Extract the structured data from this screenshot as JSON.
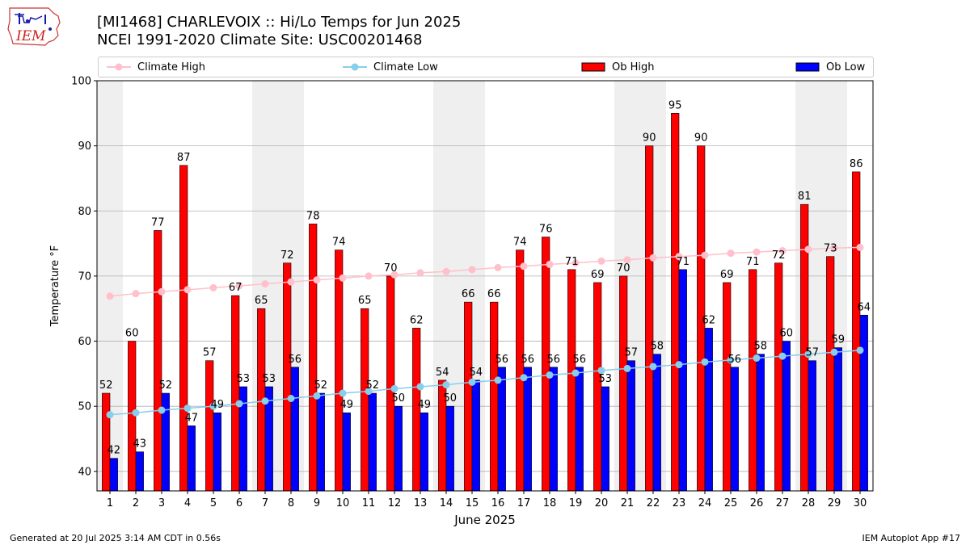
{
  "title_line1": "[MI1468] CHARLEVOIX :: Hi/Lo Temps for Jun 2025",
  "title_line2": "NCEI 1991-2020 Climate Site: USC00201468",
  "logo_text": "IEM",
  "footer_left": "Generated at 20 Jul 2025 3:14 AM CDT in 0.56s",
  "footer_right": "IEM Autoplot App #17",
  "colors": {
    "ob_high": "#ff0000",
    "ob_low": "#0000ff",
    "climate_high": "#ffc0cb",
    "climate_low": "#87ceeb",
    "weekend_shade": "#efefef",
    "grid": "#b0b0b0"
  },
  "chart_data": {
    "type": "bar",
    "xlabel": "June 2025",
    "ylabel": "Temperature °F",
    "ylim": [
      37,
      100
    ],
    "yticks": [
      40,
      50,
      60,
      70,
      80,
      90,
      100
    ],
    "grid": "horizontal",
    "legend_placement": "top",
    "shaded_days": [
      1,
      7,
      8,
      14,
      15,
      21,
      22,
      28,
      29
    ],
    "categories": [
      "1",
      "2",
      "3",
      "4",
      "5",
      "6",
      "7",
      "8",
      "9",
      "10",
      "11",
      "12",
      "13",
      "14",
      "15",
      "16",
      "17",
      "18",
      "19",
      "20",
      "21",
      "22",
      "23",
      "24",
      "25",
      "26",
      "27",
      "28",
      "29",
      "30"
    ],
    "series": [
      {
        "name": "Climate High",
        "kind": "line",
        "values": [
          66.9,
          67.3,
          67.6,
          67.9,
          68.2,
          68.5,
          68.8,
          69.1,
          69.4,
          69.7,
          70.0,
          70.2,
          70.5,
          70.7,
          71.0,
          71.3,
          71.5,
          71.8,
          72.0,
          72.3,
          72.5,
          72.8,
          73.0,
          73.2,
          73.5,
          73.7,
          73.9,
          74.1,
          74.3,
          74.4
        ]
      },
      {
        "name": "Climate Low",
        "kind": "line",
        "values": [
          48.7,
          49.0,
          49.4,
          49.7,
          50.0,
          50.4,
          50.8,
          51.2,
          51.6,
          52.0,
          52.3,
          52.7,
          53.0,
          53.3,
          53.7,
          54.0,
          54.4,
          54.8,
          55.1,
          55.5,
          55.8,
          56.1,
          56.4,
          56.8,
          57.1,
          57.4,
          57.7,
          58.0,
          58.3,
          58.6
        ]
      },
      {
        "name": "Ob High",
        "kind": "bar",
        "values": [
          52,
          60,
          77,
          87,
          57,
          67,
          65,
          72,
          78,
          74,
          65,
          70,
          62,
          54,
          66,
          66,
          74,
          76,
          71,
          69,
          70,
          90,
          95,
          90,
          69,
          71,
          72,
          81,
          73,
          86
        ]
      },
      {
        "name": "Ob Low",
        "kind": "bar",
        "values": [
          42,
          43,
          52,
          47,
          49,
          53,
          53,
          56,
          52,
          49,
          52,
          50,
          49,
          50,
          54,
          56,
          56,
          56,
          56,
          53,
          57,
          58,
          71,
          62,
          56,
          58,
          60,
          57,
          59,
          64
        ]
      }
    ]
  }
}
